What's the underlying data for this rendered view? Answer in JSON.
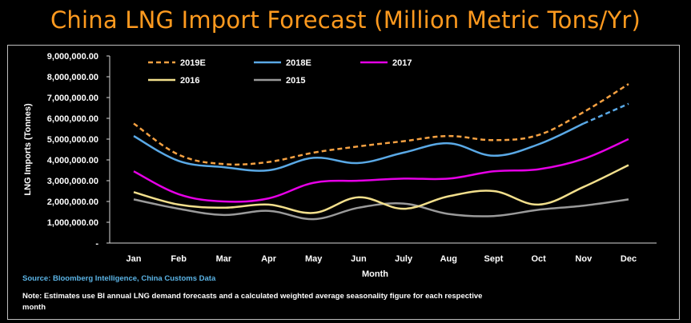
{
  "title": "China LNG Import Forecast (Million Metric Tons/Yr)",
  "source": "Source: Bloomberg Intelligence, China Customs Data",
  "note": "Note: Estimates use BI annual LNG demand forecasts and a calculated weighted average seasonality figure for each respective month",
  "colors": {
    "background": "#000000",
    "title": "#ff9a1f",
    "source": "#5bb4e6",
    "frame": "#bfbfbf"
  },
  "chart_data": {
    "type": "line",
    "title": "China LNG Import Forecast (Million Metric Tons/Yr)",
    "xlabel": "Month",
    "ylabel": "LNG Imports (Tonnes)",
    "categories": [
      "Jan",
      "Feb",
      "Mar",
      "Apr",
      "May",
      "Jun",
      "July",
      "Aug",
      "Sept",
      "Oct",
      "Nov",
      "Dec"
    ],
    "ylim": [
      0,
      9000000
    ],
    "yticks": [
      0,
      1000000,
      2000000,
      3000000,
      4000000,
      5000000,
      6000000,
      7000000,
      8000000,
      9000000
    ],
    "ytick_labels": [
      "-",
      "1,000,000.00",
      "2,000,000.00",
      "3,000,000.00",
      "4,000,000.00",
      "5,000,000.00",
      "6,000,000.00",
      "7,000,000.00",
      "8,000,000.00",
      "9,000,000.00"
    ],
    "grid": false,
    "legend_position": "top-left",
    "series": [
      {
        "name": "2019E",
        "color": "#f5a142",
        "dashed": true,
        "values": [
          5750000,
          4250000,
          3800000,
          3900000,
          4350000,
          4650000,
          4900000,
          5150000,
          4950000,
          5200000,
          6300000,
          7650000
        ]
      },
      {
        "name": "2018E",
        "color": "#5aa9e6",
        "dashed": false,
        "dashed_from_index": 10,
        "values": [
          5150000,
          3950000,
          3650000,
          3500000,
          4100000,
          3850000,
          4350000,
          4800000,
          4200000,
          4750000,
          5750000,
          6700000
        ]
      },
      {
        "name": "2017",
        "color": "#e600e6",
        "dashed": false,
        "values": [
          3450000,
          2350000,
          2000000,
          2150000,
          2900000,
          3000000,
          3100000,
          3100000,
          3450000,
          3550000,
          4050000,
          5000000
        ]
      },
      {
        "name": "2016",
        "color": "#f2df8c",
        "dashed": false,
        "values": [
          2450000,
          1850000,
          1700000,
          1850000,
          1450000,
          2200000,
          1650000,
          2250000,
          2500000,
          1850000,
          2700000,
          3750000
        ]
      },
      {
        "name": "2015",
        "color": "#9a9a9a",
        "dashed": false,
        "values": [
          2100000,
          1650000,
          1350000,
          1550000,
          1150000,
          1700000,
          1900000,
          1400000,
          1300000,
          1600000,
          1800000,
          2100000
        ]
      }
    ]
  }
}
